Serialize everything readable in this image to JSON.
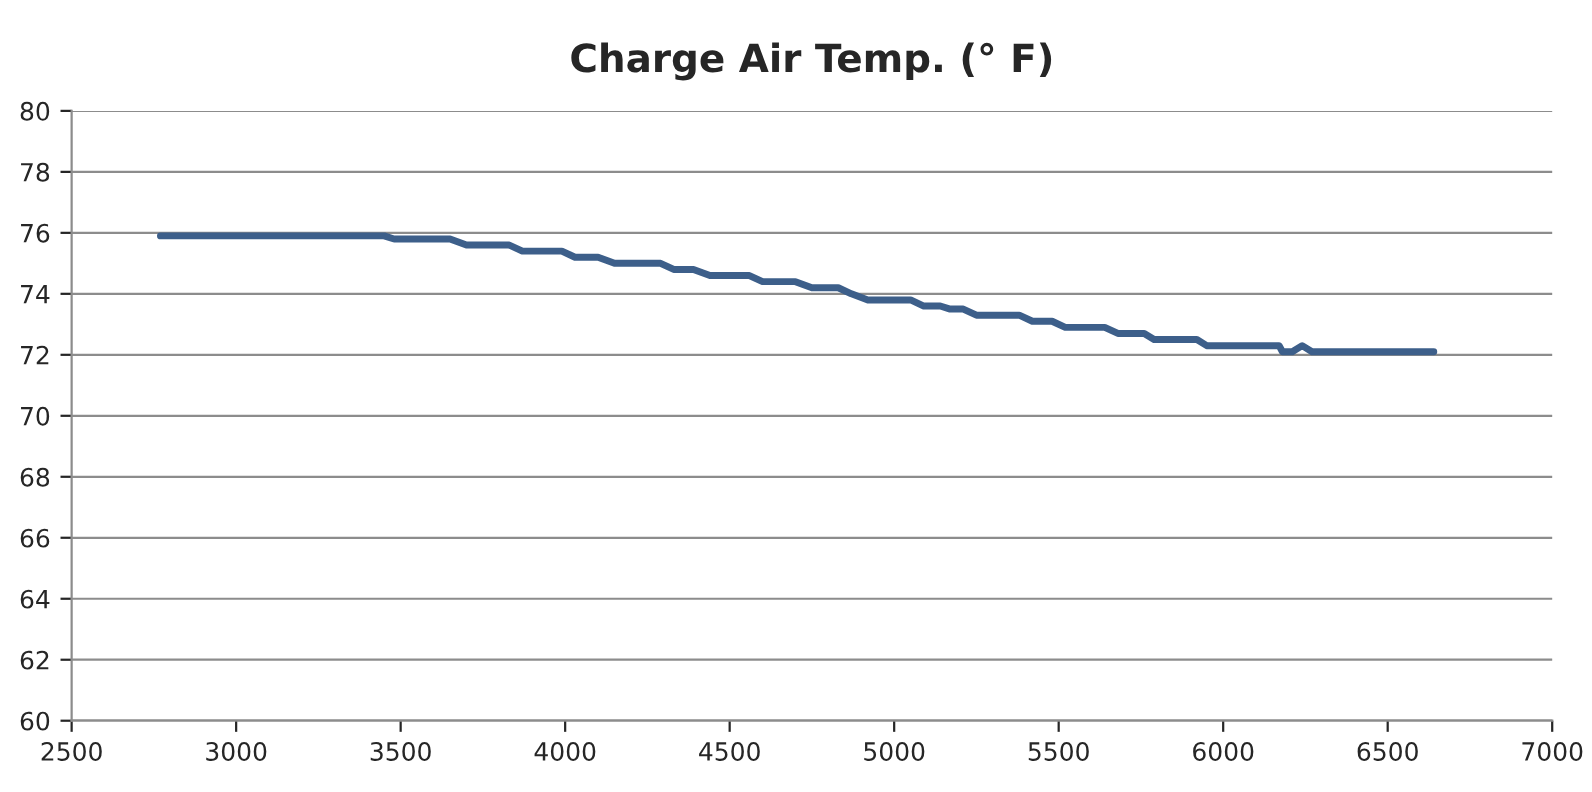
{
  "chart_data": {
    "type": "line",
    "title": "Charge Air Temp. (° F)",
    "x": [
      2770,
      3450,
      3480,
      3650,
      3700,
      3830,
      3870,
      3990,
      4030,
      4100,
      4150,
      4290,
      4330,
      4390,
      4440,
      4560,
      4600,
      4700,
      4750,
      4830,
      4870,
      4920,
      5050,
      5090,
      5140,
      5170,
      5210,
      5250,
      5380,
      5420,
      5480,
      5520,
      5640,
      5680,
      5760,
      5790,
      5920,
      5950,
      6170,
      6180,
      6210,
      6240,
      6270,
      6640
    ],
    "series": [
      {
        "color": "#3d5f8a",
        "values": [
          75.9,
          75.9,
          75.8,
          75.8,
          75.6,
          75.6,
          75.4,
          75.4,
          75.2,
          75.2,
          75.0,
          75.0,
          74.8,
          74.8,
          74.6,
          74.6,
          74.4,
          74.4,
          74.2,
          74.2,
          74.0,
          73.8,
          73.8,
          73.6,
          73.6,
          73.5,
          73.5,
          73.3,
          73.3,
          73.1,
          73.1,
          72.9,
          72.9,
          72.7,
          72.7,
          72.5,
          72.5,
          72.3,
          72.3,
          72.1,
          72.1,
          72.3,
          72.1,
          72.1
        ]
      }
    ],
    "xlim": [
      2500,
      7000
    ],
    "ylim": [
      60,
      80
    ],
    "xticks": [
      2500,
      3000,
      3500,
      4000,
      4500,
      5000,
      5500,
      6000,
      6500,
      7000
    ],
    "yticks": [
      60,
      62,
      64,
      66,
      68,
      70,
      72,
      74,
      76,
      78,
      80
    ],
    "grid": "y",
    "marker": "none",
    "line_style": "solid"
  }
}
